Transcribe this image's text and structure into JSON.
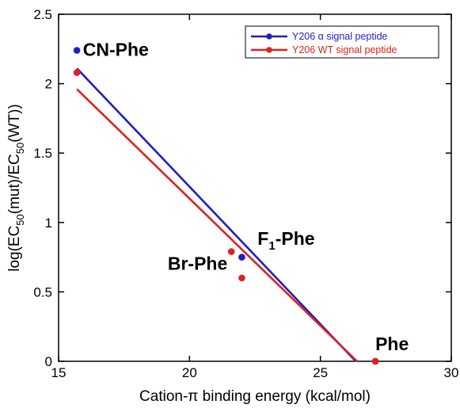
{
  "chart_data": {
    "type": "scatter",
    "xlabel": "Cation-π binding energy (kcal/mol)",
    "ylabel_parts": [
      "log(EC",
      "50",
      "(mut)/EC",
      "50",
      "(WT))"
    ],
    "xlim": [
      15,
      30
    ],
    "ylim": [
      0,
      2.5
    ],
    "xticks": [
      "15",
      "20",
      "25",
      "30"
    ],
    "yticks": [
      "0",
      "0.5",
      "1",
      "1.5",
      "2",
      "2.5"
    ],
    "grid": false,
    "legend_position": "top-right",
    "series": [
      {
        "name": "Y206 α signal peptide",
        "color": "#1f1fbf",
        "points": [
          {
            "x": 15.7,
            "y": 2.24
          },
          {
            "x": 22.0,
            "y": 0.75
          },
          {
            "x": 27.1,
            "y": 0.0
          }
        ],
        "fit_line": [
          {
            "x": 15.7,
            "y": 2.11
          },
          {
            "x": 26.35,
            "y": 0.0
          }
        ]
      },
      {
        "name": "Y206 WT signal peptide",
        "color": "#e02020",
        "points": [
          {
            "x": 15.7,
            "y": 2.08
          },
          {
            "x": 21.6,
            "y": 0.79
          },
          {
            "x": 22.0,
            "y": 0.6
          },
          {
            "x": 27.1,
            "y": 0.0
          }
        ],
        "fit_line": [
          {
            "x": 15.7,
            "y": 1.96
          },
          {
            "x": 26.4,
            "y": 0.0
          }
        ]
      }
    ],
    "annotations": [
      {
        "id": "cn-phe",
        "text": "CN-Phe",
        "x": 15.93,
        "y": 2.2
      },
      {
        "id": "br-phe",
        "text": "Br-Phe",
        "x": 21.45,
        "y": 0.66,
        "anchor": "end"
      },
      {
        "id": "f1-phe",
        "text": "F",
        "sub": "1",
        "tail": "-Phe",
        "x": 22.6,
        "y": 0.84
      },
      {
        "id": "phe",
        "text": "Phe",
        "x": 27.1,
        "y": 0.08
      }
    ]
  }
}
